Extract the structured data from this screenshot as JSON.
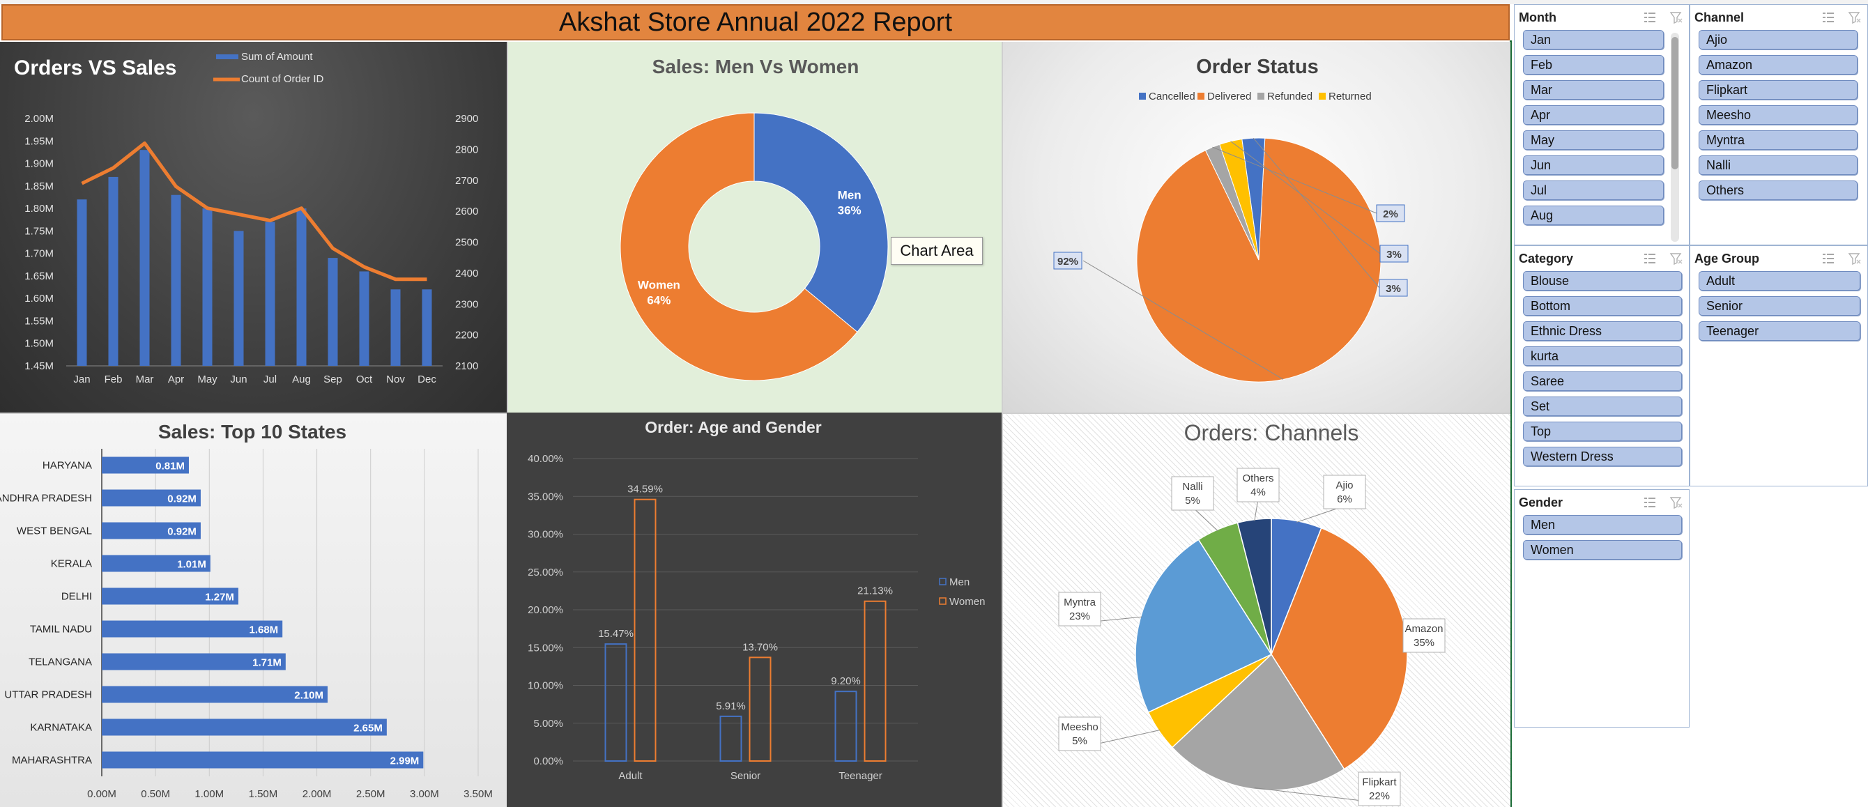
{
  "title": "Akshat Store Annual 2022 Report",
  "tooltip": "Chart Area",
  "chart_data": [
    {
      "id": "orders_vs_sales",
      "type": "bar+line",
      "title": "Orders VS Sales",
      "categories": [
        "Jan",
        "Feb",
        "Mar",
        "Apr",
        "May",
        "Jun",
        "Jul",
        "Aug",
        "Sep",
        "Oct",
        "Nov",
        "Dec"
      ],
      "series": [
        {
          "name": "Sum of Amount",
          "axis": "left",
          "values": [
            1.82,
            1.87,
            1.93,
            1.83,
            1.8,
            1.75,
            1.77,
            1.8,
            1.69,
            1.66,
            1.62,
            1.62
          ]
        },
        {
          "name": "Count of Order ID",
          "axis": "right",
          "values": [
            2690,
            2740,
            2820,
            2680,
            2610,
            2590,
            2570,
            2610,
            2480,
            2420,
            2380,
            2380
          ]
        }
      ],
      "y_left": {
        "min": 1.45,
        "max": 2.0,
        "ticks": [
          "1.45M",
          "1.50M",
          "1.55M",
          "1.60M",
          "1.65M",
          "1.70M",
          "1.75M",
          "1.80M",
          "1.85M",
          "1.90M",
          "1.95M",
          "2.00M"
        ]
      },
      "y_right": {
        "min": 2100,
        "max": 2900,
        "ticks": [
          "2100",
          "2200",
          "2300",
          "2400",
          "2500",
          "2600",
          "2700",
          "2800",
          "2900"
        ]
      },
      "colors": {
        "bar": "#4472c4",
        "line": "#ed7d31"
      }
    },
    {
      "id": "men_vs_women",
      "type": "pie",
      "title": "Sales: Men Vs Women",
      "slices": [
        {
          "name": "Men",
          "value": 36,
          "label": "36%",
          "color": "#4472c4"
        },
        {
          "name": "Women",
          "value": 64,
          "label": "64%",
          "color": "#ed7d31"
        }
      ]
    },
    {
      "id": "order_status",
      "type": "pie",
      "title": "Order Status",
      "legend": [
        "Cancelled",
        "Delivered",
        "Refunded",
        "Returned"
      ],
      "slices": [
        {
          "name": "Cancelled",
          "value": 3,
          "label": "3%",
          "color": "#4472c4"
        },
        {
          "name": "Delivered",
          "value": 92,
          "label": "92%",
          "color": "#ed7d31"
        },
        {
          "name": "Refunded",
          "value": 2,
          "label": "2%",
          "color": "#a5a5a5"
        },
        {
          "name": "Returned",
          "value": 3,
          "label": "3%",
          "color": "#ffc000"
        }
      ]
    },
    {
      "id": "top_states",
      "type": "bar",
      "orientation": "horizontal",
      "title": "Sales: Top 10 States",
      "categories": [
        "HARYANA",
        "ANDHRA PRADESH",
        "WEST BENGAL",
        "KERALA",
        "DELHI",
        "TAMIL NADU",
        "TELANGANA",
        "UTTAR PRADESH",
        "KARNATAKA",
        "MAHARASHTRA"
      ],
      "values": [
        0.81,
        0.92,
        0.92,
        1.01,
        1.27,
        1.68,
        1.71,
        2.1,
        2.65,
        2.99
      ],
      "labels": [
        "0.81M",
        "0.92M",
        "0.92M",
        "1.01M",
        "1.27M",
        "1.68M",
        "1.71M",
        "2.10M",
        "2.65M",
        "2.99M"
      ],
      "x_ticks": [
        "0.00M",
        "0.50M",
        "1.00M",
        "1.50M",
        "2.00M",
        "2.50M",
        "3.00M",
        "3.50M"
      ],
      "xlim": [
        0,
        3.5
      ],
      "color": "#4472c4"
    },
    {
      "id": "age_gender",
      "type": "bar",
      "title": "Order: Age and Gender",
      "categories": [
        "Adult",
        "Senior",
        "Teenager"
      ],
      "series": [
        {
          "name": "Men",
          "values": [
            15.47,
            5.91,
            9.2
          ],
          "labels": [
            "15.47%",
            "5.91%",
            "9.20%"
          ],
          "color": "#4472c4"
        },
        {
          "name": "Women",
          "values": [
            34.59,
            13.7,
            21.13
          ],
          "labels": [
            "34.59%",
            "13.70%",
            "21.13%"
          ],
          "color": "#ed7d31"
        }
      ],
      "y_ticks": [
        "0.00%",
        "5.00%",
        "10.00%",
        "15.00%",
        "20.00%",
        "25.00%",
        "30.00%",
        "35.00%",
        "40.00%"
      ],
      "ylim": [
        0,
        40
      ]
    },
    {
      "id": "channels",
      "type": "pie",
      "title": "Orders: Channels",
      "slices": [
        {
          "name": "Ajio",
          "value": 6,
          "label": "6%",
          "color": "#4472c4"
        },
        {
          "name": "Amazon",
          "value": 35,
          "label": "35%",
          "color": "#ed7d31"
        },
        {
          "name": "Flipkart",
          "value": 22,
          "label": "22%",
          "color": "#a5a5a5"
        },
        {
          "name": "Meesho",
          "value": 5,
          "label": "5%",
          "color": "#ffc000"
        },
        {
          "name": "Myntra",
          "value": 23,
          "label": "23%",
          "color": "#5b9bd5"
        },
        {
          "name": "Nalli",
          "value": 5,
          "label": "5%",
          "color": "#70ad47"
        },
        {
          "name": "Others",
          "value": 4,
          "label": "4%",
          "color": "#264478"
        }
      ]
    }
  ],
  "slicers": {
    "month": {
      "title": "Month",
      "items": [
        "Jan",
        "Feb",
        "Mar",
        "Apr",
        "May",
        "Jun",
        "Jul",
        "Aug"
      ]
    },
    "channel": {
      "title": "Channel",
      "items": [
        "Ajio",
        "Amazon",
        "Flipkart",
        "Meesho",
        "Myntra",
        "Nalli",
        "Others"
      ]
    },
    "category": {
      "title": "Category",
      "items": [
        "Blouse",
        "Bottom",
        "Ethnic Dress",
        "kurta",
        "Saree",
        "Set",
        "Top",
        "Western Dress"
      ]
    },
    "age_group": {
      "title": "Age Group",
      "items": [
        "Adult",
        "Senior",
        "Teenager"
      ]
    },
    "gender": {
      "title": "Gender",
      "items": [
        "Men",
        "Women"
      ]
    }
  }
}
